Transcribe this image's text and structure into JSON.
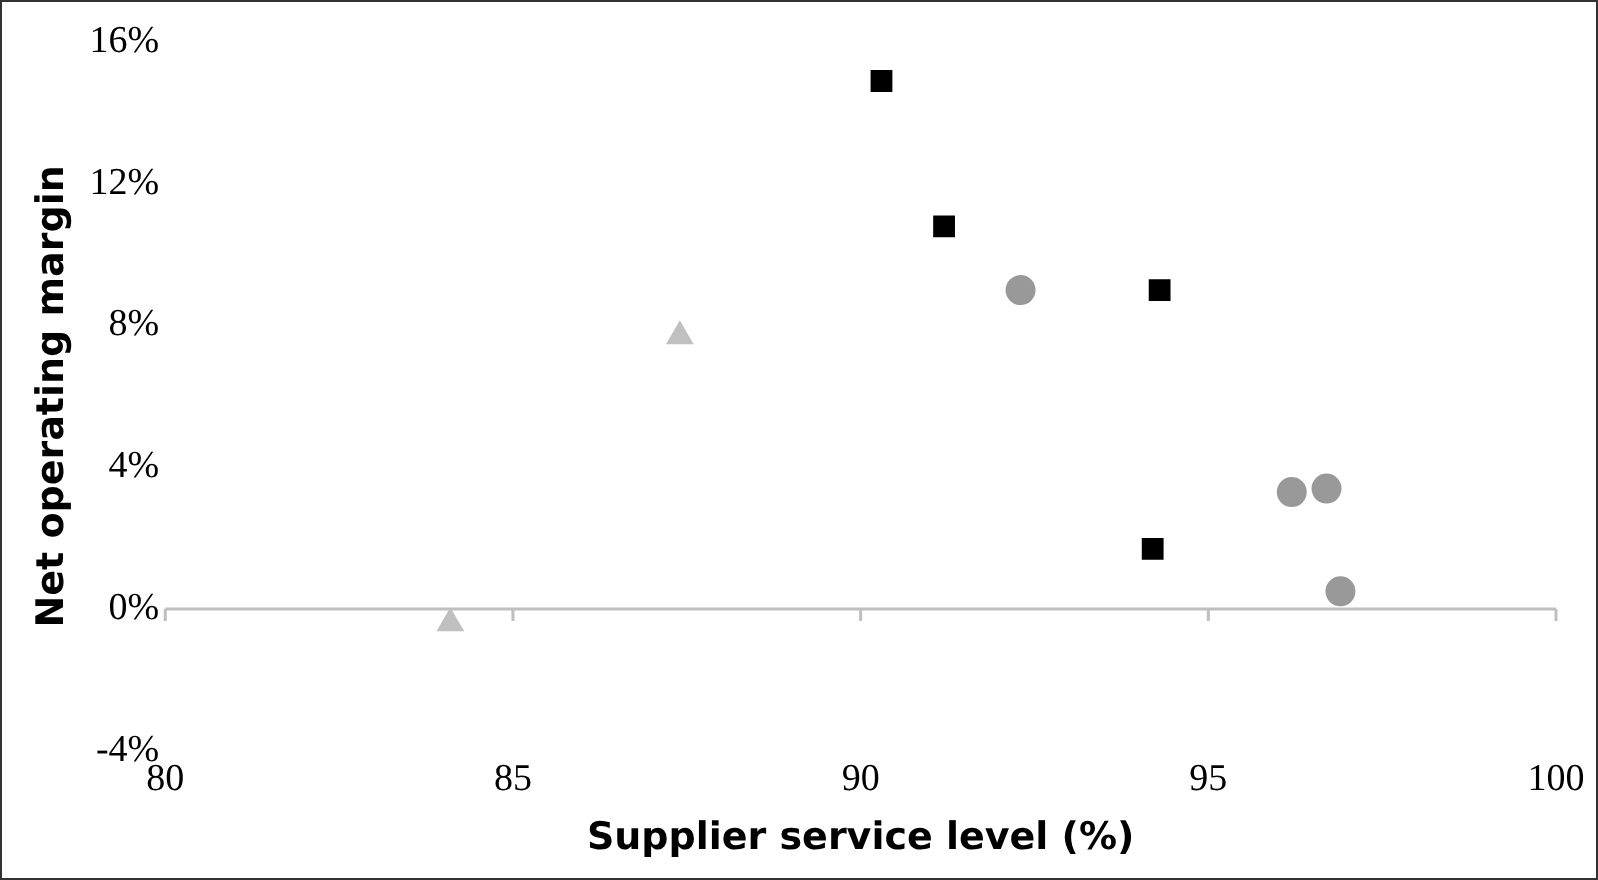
{
  "chart_data": {
    "type": "scatter",
    "xlabel": "Supplier service level (%)",
    "ylabel": "Net operating margin",
    "xlim": [
      80,
      100
    ],
    "xticks": [
      80,
      85,
      90,
      95,
      100
    ],
    "ylim": [
      -4,
      16
    ],
    "yticks": [
      {
        "value": -4,
        "label": "-4%"
      },
      {
        "value": 0,
        "label": "0%"
      },
      {
        "value": 4,
        "label": "4%"
      },
      {
        "value": 8,
        "label": "8%"
      },
      {
        "value": 12,
        "label": "12%"
      },
      {
        "value": 16,
        "label": "16%"
      }
    ],
    "grid": false,
    "legend": false,
    "ref_lines": [
      {
        "axis": "y",
        "value": 0,
        "color": "#bfbfbf"
      }
    ],
    "series": [
      {
        "color": "#000000",
        "marker": "square",
        "x": [
          90.3,
          91.2,
          94.3,
          94.2
        ],
        "values": [
          14.9,
          10.8,
          9.0,
          1.7
        ]
      },
      {
        "color": "#999999",
        "marker": "circle",
        "x": [
          92.3,
          96.2,
          96.7,
          96.9
        ],
        "values": [
          9.0,
          3.3,
          3.4,
          0.5
        ]
      },
      {
        "color": "#c0c0c0",
        "marker": "triangle",
        "x": [
          87.4,
          84.1
        ],
        "values": [
          7.7,
          -0.4
        ]
      }
    ]
  }
}
